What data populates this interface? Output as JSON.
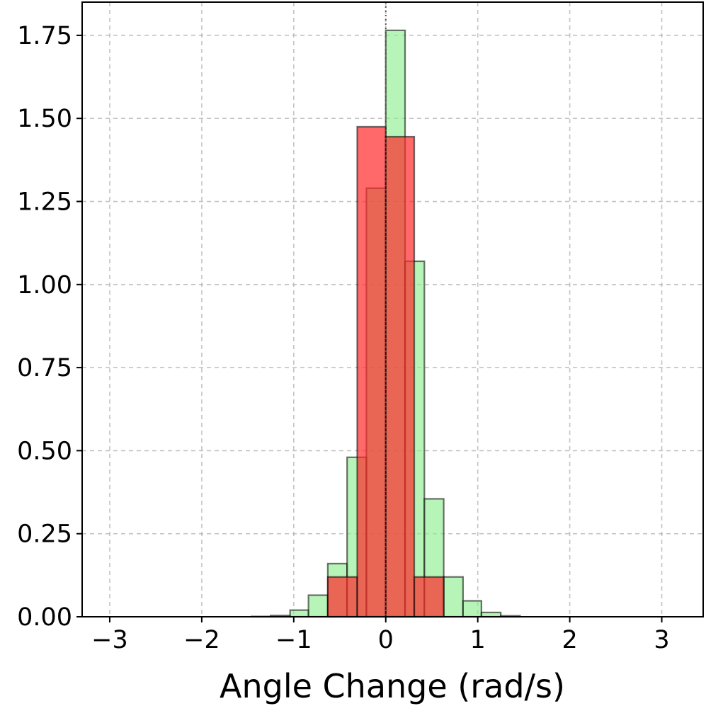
{
  "chart_data": {
    "type": "bar",
    "xlabel": "Angle Change (rad/s)",
    "ylabel": "",
    "title": "",
    "xlim": [
      -3.3,
      3.45
    ],
    "ylim": [
      0,
      1.85
    ],
    "xticks": [
      -3,
      -2,
      -1,
      0,
      1,
      2,
      3
    ],
    "xtick_labels": [
      "−3",
      "−2",
      "−1",
      "0",
      "1",
      "2",
      "3"
    ],
    "yticks": [
      0,
      0.25,
      0.5,
      0.75,
      1.0,
      1.25,
      1.5,
      1.75
    ],
    "ytick_labels": [
      "0.00",
      "0.25",
      "0.50",
      "0.75",
      "1.00",
      "1.25",
      "1.50",
      "1.75"
    ],
    "grid": true,
    "reference_line_x": 0,
    "series": [
      {
        "color": "#90ee90",
        "opacity": 0.65,
        "bins": [
          [
            -3.14,
            -2.93,
            0.0
          ],
          [
            -2.93,
            -2.72,
            0.0
          ],
          [
            -2.72,
            -2.51,
            0.0
          ],
          [
            -2.51,
            -2.3,
            0.0
          ],
          [
            -2.3,
            -2.09,
            0.0
          ],
          [
            -2.09,
            -1.88,
            0.0
          ],
          [
            -1.88,
            -1.67,
            0.0
          ],
          [
            -1.67,
            -1.46,
            0.0
          ],
          [
            -1.46,
            -1.25,
            0.001
          ],
          [
            -1.25,
            -1.04,
            0.004
          ],
          [
            -1.04,
            -0.84,
            0.02
          ],
          [
            -0.84,
            -0.63,
            0.065
          ],
          [
            -0.63,
            -0.42,
            0.16
          ],
          [
            -0.42,
            -0.21,
            0.48
          ],
          [
            -0.21,
            0.0,
            1.29
          ],
          [
            -0.0,
            0.21,
            1.765
          ],
          [
            0.21,
            0.42,
            1.07
          ],
          [
            0.42,
            0.63,
            0.355
          ],
          [
            0.63,
            0.84,
            0.12
          ],
          [
            0.84,
            1.04,
            0.048
          ],
          [
            1.04,
            1.25,
            0.013
          ],
          [
            1.25,
            1.46,
            0.003
          ],
          [
            1.46,
            1.67,
            0.0
          ],
          [
            1.67,
            1.88,
            0.0
          ],
          [
            1.88,
            2.09,
            0.0
          ],
          [
            2.09,
            2.3,
            0.0
          ],
          [
            2.3,
            2.51,
            0.0
          ],
          [
            2.51,
            2.72,
            0.0
          ],
          [
            2.72,
            2.93,
            0.0
          ],
          [
            2.93,
            3.14,
            0.0
          ]
        ]
      },
      {
        "color": "#ff2a2a",
        "opacity": 0.7,
        "bins": [
          [
            -0.63,
            -0.31,
            0.12
          ],
          [
            -0.31,
            0.0,
            1.475
          ],
          [
            0.0,
            0.31,
            1.445
          ],
          [
            0.31,
            0.63,
            0.12
          ]
        ]
      }
    ]
  }
}
